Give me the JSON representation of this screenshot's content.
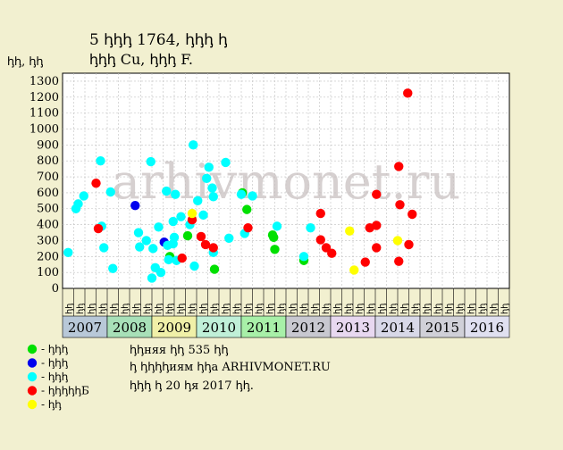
{
  "title_line1": "5 ꞕꞕꞕ 1764, ꞕꞕꞕ ꞕ",
  "title_line2": "ꞕꞕꞕ Cu, ꞕꞕꞕ F.",
  "watermark": "arhivmonet.ru",
  "chart_data": {
    "type": "scatter",
    "title": "5 ꞕꞕꞕ 1764, ꞕꞕꞕ ꞕ / ꞕꞕꞕ Cu, ꞕꞕꞕ F.",
    "ylabel": "ꞕꞕ, ꞕꞕ",
    "ylim": [
      0,
      1350
    ],
    "yticks": [
      0,
      100,
      200,
      300,
      400,
      500,
      600,
      700,
      800,
      900,
      1000,
      1100,
      1200,
      1300
    ],
    "grid": true,
    "quarter_labels": [
      "ꞕꞕ",
      "ꞕꞕ",
      "ꞕꞕ",
      "ꞕꞕ"
    ],
    "years": [
      "2007",
      "2008",
      "2009",
      "2010",
      "2011",
      "2012",
      "2013",
      "2014",
      "2015",
      "2016"
    ],
    "year_colors": [
      "#b8c8d8",
      "#a8e0b8",
      "#f0f0a8",
      "#c0f0d8",
      "#a8f0a8",
      "#c8c8d0",
      "#e8d8f0",
      "#d8d8e8",
      "#d0d0d8",
      "#e0e0f0"
    ],
    "x_unit": "quarter index (0 = Q1 2007)",
    "series": [
      {
        "color": "#00e000",
        "points": [
          [
            9.6,
            200
          ],
          [
            11.2,
            330
          ],
          [
            13.6,
            120
          ],
          [
            16.1,
            600
          ],
          [
            16.5,
            495
          ],
          [
            18.8,
            335
          ],
          [
            18.9,
            320
          ],
          [
            19.0,
            245
          ],
          [
            21.6,
            175
          ]
        ]
      },
      {
        "color": "#0000ee",
        "points": [
          [
            6.5,
            520
          ],
          [
            9.1,
            290
          ]
        ]
      },
      {
        "color": "#00ffff",
        "points": [
          [
            0.5,
            225
          ],
          [
            1.2,
            500
          ],
          [
            1.4,
            530
          ],
          [
            1.9,
            580
          ],
          [
            3.4,
            800
          ],
          [
            3.5,
            390
          ],
          [
            3.7,
            255
          ],
          [
            4.3,
            605
          ],
          [
            4.5,
            125
          ],
          [
            6.8,
            350
          ],
          [
            6.9,
            260
          ],
          [
            7.5,
            300
          ],
          [
            7.9,
            795
          ],
          [
            8.0,
            65
          ],
          [
            8.1,
            250
          ],
          [
            8.3,
            130
          ],
          [
            8.6,
            385
          ],
          [
            8.8,
            100
          ],
          [
            9.3,
            610
          ],
          [
            9.4,
            270
          ],
          [
            9.5,
            180
          ],
          [
            9.9,
            420
          ],
          [
            9.9,
            280
          ],
          [
            10.0,
            320
          ],
          [
            10.1,
            590
          ],
          [
            10.2,
            175
          ],
          [
            10.6,
            450
          ],
          [
            11.4,
            400
          ],
          [
            11.7,
            900
          ],
          [
            11.8,
            140
          ],
          [
            12.1,
            550
          ],
          [
            12.6,
            460
          ],
          [
            12.9,
            690
          ],
          [
            13.1,
            760
          ],
          [
            13.4,
            630
          ],
          [
            13.5,
            225
          ],
          [
            13.5,
            575
          ],
          [
            14.6,
            790
          ],
          [
            14.9,
            315
          ],
          [
            16.0,
            590
          ],
          [
            16.3,
            345
          ],
          [
            17.0,
            580
          ],
          [
            19.2,
            390
          ],
          [
            21.6,
            200
          ],
          [
            22.2,
            380
          ]
        ]
      },
      {
        "color": "#ff0000",
        "points": [
          [
            3.0,
            660
          ],
          [
            3.2,
            375
          ],
          [
            10.7,
            190
          ],
          [
            11.6,
            430
          ],
          [
            12.4,
            325
          ],
          [
            12.8,
            275
          ],
          [
            13.5,
            255
          ],
          [
            16.6,
            380
          ],
          [
            23.1,
            470
          ],
          [
            23.1,
            305
          ],
          [
            23.6,
            255
          ],
          [
            24.1,
            220
          ],
          [
            27.1,
            165
          ],
          [
            27.5,
            380
          ],
          [
            28.1,
            590
          ],
          [
            28.1,
            395
          ],
          [
            28.1,
            255
          ],
          [
            30.1,
            765
          ],
          [
            30.1,
            170
          ],
          [
            30.2,
            525
          ],
          [
            30.9,
            1225
          ],
          [
            31.0,
            275
          ],
          [
            31.3,
            465
          ]
        ]
      },
      {
        "color": "#ffff00",
        "points": [
          [
            11.6,
            470
          ],
          [
            25.7,
            360
          ],
          [
            26.1,
            115
          ],
          [
            30.0,
            300
          ]
        ]
      }
    ]
  },
  "legend": [
    {
      "color": "#00e000",
      "label": "- ꞕꞕꞕ"
    },
    {
      "color": "#0000ee",
      "label": "- ꞕꞕꞕ"
    },
    {
      "color": "#00ffff",
      "label": "- ꞕꞕꞕ"
    },
    {
      "color": "#ff0000",
      "label": "- ꞕꞕꞕꞕꞕБ"
    },
    {
      "color": "#ffff00",
      "label": "- ꞕꞕ"
    }
  ],
  "footer": {
    "line1": "ꞕꞕняя ꞕꞕ 535 ꞕꞕ",
    "line2": "ꞕ ꞕꞕꞕꞕиям ꞕꞕа ARHIVMONET.RU",
    "line3": "ꞕꞕꞕ ꞕ 20 ꞕя 2017 ꞕꞕ."
  }
}
